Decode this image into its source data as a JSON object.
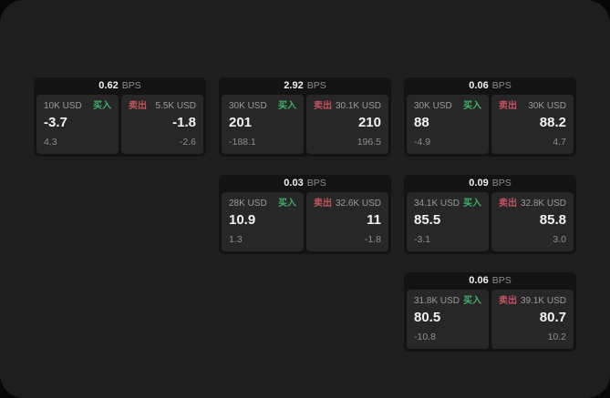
{
  "labels": {
    "bps": "BPS",
    "buy": "买入",
    "sell": "卖出"
  },
  "colors": {
    "buy_green": "#3fb169",
    "sell_red": "#c4525f",
    "surface": "#1e1e1e",
    "card_bg": "#131313",
    "panel_bg": "#272727"
  },
  "cards": [
    {
      "row": 1,
      "col": 1,
      "bps": "0.62",
      "buy": {
        "amount": "10K USD",
        "value": "-3.7",
        "delta": "4.3"
      },
      "sell": {
        "amount": "5.5K USD",
        "value": "-1.8",
        "delta": "-2.6"
      }
    },
    {
      "row": 1,
      "col": 2,
      "bps": "2.92",
      "buy": {
        "amount": "30K USD",
        "value": "201",
        "delta": "-188.1"
      },
      "sell": {
        "amount": "30.1K USD",
        "value": "210",
        "delta": "196.5"
      }
    },
    {
      "row": 1,
      "col": 3,
      "bps": "0.06",
      "buy": {
        "amount": "30K USD",
        "value": "88",
        "delta": "-4.9"
      },
      "sell": {
        "amount": "30K USD",
        "value": "88.2",
        "delta": "4.7"
      }
    },
    {
      "row": 2,
      "col": 2,
      "bps": "0.03",
      "buy": {
        "amount": "28K USD",
        "value": "10.9",
        "delta": "1.3"
      },
      "sell": {
        "amount": "32.6K USD",
        "value": "11",
        "delta": "-1.8"
      }
    },
    {
      "row": 2,
      "col": 3,
      "bps": "0.09",
      "buy": {
        "amount": "34.1K USD",
        "value": "85.5",
        "delta": "-3.1"
      },
      "sell": {
        "amount": "32.8K USD",
        "value": "85.8",
        "delta": "3.0"
      }
    },
    {
      "row": 3,
      "col": 3,
      "bps": "0.06",
      "buy": {
        "amount": "31.8K USD",
        "value": "80.5",
        "delta": "-10.8"
      },
      "sell": {
        "amount": "39.1K USD",
        "value": "80.7",
        "delta": "10.2"
      }
    }
  ]
}
